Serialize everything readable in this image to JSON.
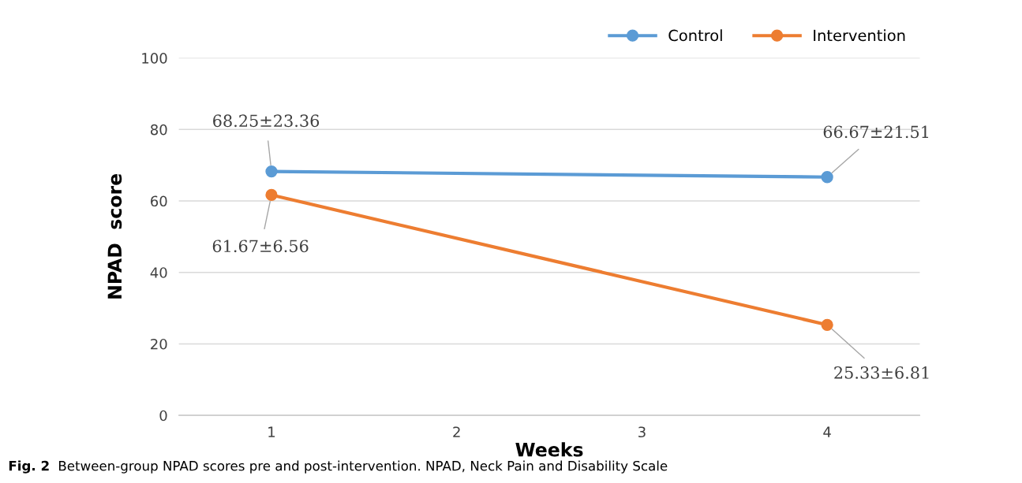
{
  "chart_data": {
    "type": "line",
    "xlabel": "Weeks",
    "ylabel": "NPAD  score",
    "x": [
      1,
      4
    ],
    "xlim": [
      0.5,
      4.5
    ],
    "xticks": [
      1,
      2,
      3,
      4
    ],
    "ylim": [
      0,
      100
    ],
    "yticks": [
      0,
      20,
      40,
      60,
      80,
      100
    ],
    "series": [
      {
        "name": "Control",
        "color": "#5b9bd5",
        "values": [
          68.25,
          66.67
        ],
        "value_labels": [
          "68.25±23.36",
          "66.67±21.51"
        ]
      },
      {
        "name": "Intervention",
        "color": "#ed7d31",
        "values": [
          61.67,
          25.33
        ],
        "value_labels": [
          "61.67±6.56",
          "25.33±6.81"
        ]
      }
    ],
    "annotations": [
      "Fig. 2",
      "Between-group NPAD scores pre and post-intervention. NPAD, Neck Pain and Disability Scale"
    ],
    "grid": "y",
    "legend": "top right",
    "marker": "circle",
    "line_style": "solid"
  }
}
